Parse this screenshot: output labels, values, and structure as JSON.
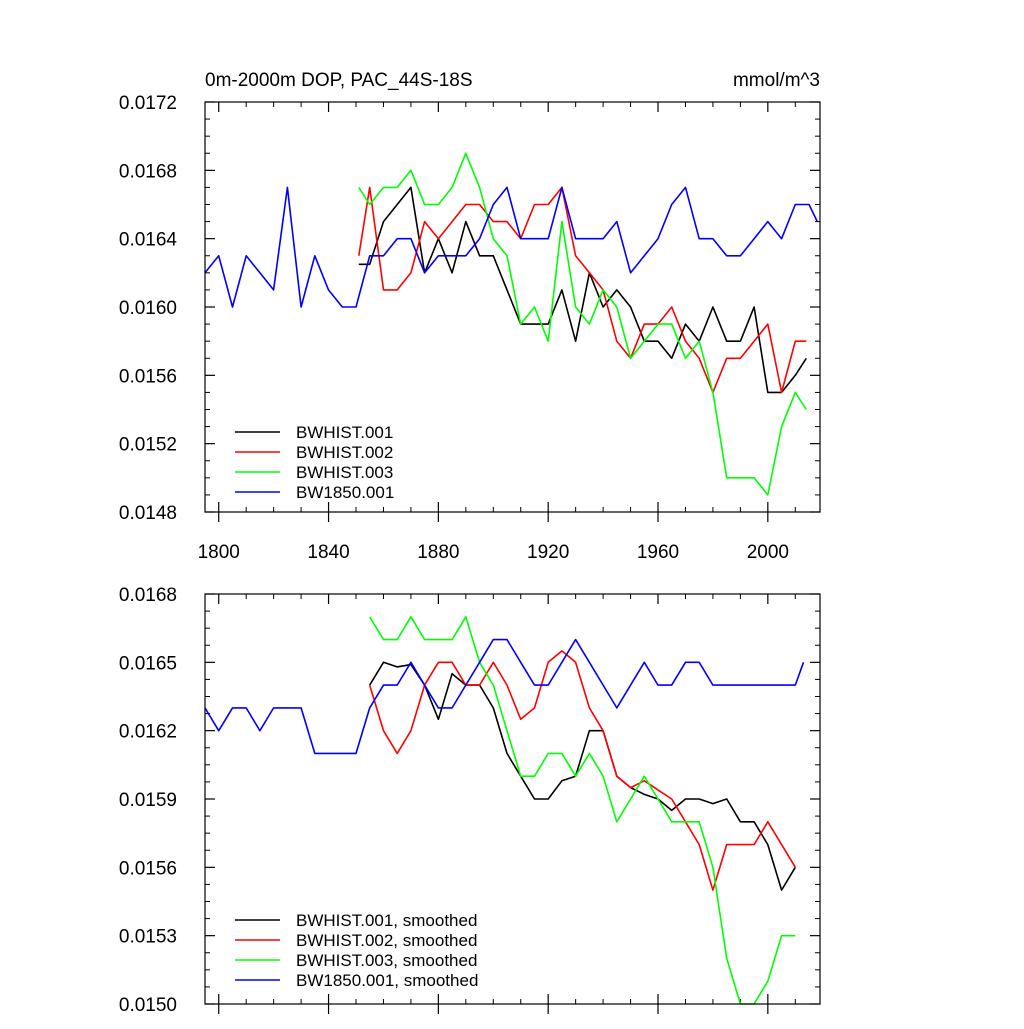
{
  "chart_data": [
    {
      "type": "line",
      "title": "0m-2000m DOP, PAC_44S-18S",
      "units": "mmol/m^3",
      "xlim": [
        1795,
        2019
      ],
      "ylim": [
        0.0148,
        0.0172
      ],
      "xticks": [
        1800,
        1840,
        1880,
        1920,
        1960,
        2000
      ],
      "yticks": [
        0.0148,
        0.0152,
        0.0156,
        0.016,
        0.0164,
        0.0168,
        0.0172
      ],
      "ytick_labels": [
        "0.0148",
        "0.0152",
        "0.0156",
        "0.0160",
        "0.0164",
        "0.0168",
        "0.0172"
      ],
      "xtick_labels": [
        "1800",
        "1840",
        "1880",
        "1920",
        "1960",
        "2000"
      ],
      "legend_position": "bottom-left",
      "series": [
        {
          "name": "BWHIST.001",
          "color": "#000000",
          "x": [
            1851,
            1855,
            1860,
            1865,
            1870,
            1875,
            1880,
            1885,
            1890,
            1895,
            1900,
            1905,
            1910,
            1915,
            1920,
            1925,
            1930,
            1935,
            1940,
            1945,
            1950,
            1955,
            1960,
            1965,
            1970,
            1975,
            1980,
            1985,
            1990,
            1995,
            2000,
            2005,
            2010,
            2014
          ],
          "y": [
            0.01625,
            0.01625,
            0.0165,
            0.0166,
            0.0167,
            0.0162,
            0.0164,
            0.0162,
            0.0165,
            0.0163,
            0.0163,
            0.0161,
            0.0159,
            0.0159,
            0.0159,
            0.0161,
            0.0158,
            0.0162,
            0.016,
            0.0161,
            0.016,
            0.0158,
            0.0158,
            0.0157,
            0.0159,
            0.0158,
            0.016,
            0.0158,
            0.0158,
            0.016,
            0.0155,
            0.0155,
            0.0156,
            0.0157
          ]
        },
        {
          "name": "BWHIST.002",
          "color": "#ff0000",
          "x": [
            1851,
            1855,
            1860,
            1865,
            1870,
            1875,
            1880,
            1885,
            1890,
            1895,
            1900,
            1905,
            1910,
            1915,
            1920,
            1925,
            1930,
            1935,
            1940,
            1945,
            1950,
            1955,
            1960,
            1965,
            1970,
            1975,
            1980,
            1985,
            1990,
            1995,
            2000,
            2005,
            2010,
            2014
          ],
          "y": [
            0.0163,
            0.0167,
            0.0161,
            0.0161,
            0.0162,
            0.0165,
            0.0164,
            0.0165,
            0.0166,
            0.0166,
            0.0165,
            0.0165,
            0.0164,
            0.0166,
            0.0166,
            0.0167,
            0.0163,
            0.0162,
            0.0161,
            0.0158,
            0.0157,
            0.0159,
            0.0159,
            0.016,
            0.0158,
            0.0157,
            0.0155,
            0.0157,
            0.0157,
            0.0158,
            0.0159,
            0.0155,
            0.0158,
            0.0158
          ]
        },
        {
          "name": "BWHIST.003",
          "color": "#00ff00",
          "x": [
            1851,
            1855,
            1860,
            1865,
            1870,
            1875,
            1880,
            1885,
            1890,
            1895,
            1900,
            1905,
            1910,
            1915,
            1920,
            1925,
            1930,
            1935,
            1940,
            1945,
            1950,
            1955,
            1960,
            1965,
            1970,
            1975,
            1980,
            1985,
            1990,
            1995,
            2000,
            2005,
            2010,
            2014
          ],
          "y": [
            0.0167,
            0.0166,
            0.0167,
            0.0167,
            0.0168,
            0.0166,
            0.0166,
            0.0167,
            0.0169,
            0.0167,
            0.0164,
            0.0163,
            0.0159,
            0.016,
            0.0158,
            0.0165,
            0.016,
            0.0159,
            0.0161,
            0.016,
            0.0157,
            0.0158,
            0.0159,
            0.0159,
            0.0157,
            0.0158,
            0.0155,
            0.015,
            0.015,
            0.015,
            0.0149,
            0.0153,
            0.0155,
            0.0154
          ]
        },
        {
          "name": "BW1850.001",
          "color": "#0000ff",
          "x": [
            1795,
            1800,
            1805,
            1810,
            1815,
            1820,
            1825,
            1830,
            1835,
            1840,
            1845,
            1850,
            1855,
            1860,
            1865,
            1870,
            1875,
            1880,
            1885,
            1890,
            1895,
            1900,
            1905,
            1910,
            1915,
            1920,
            1925,
            1930,
            1935,
            1940,
            1945,
            1950,
            1955,
            1960,
            1965,
            1970,
            1975,
            1980,
            1985,
            1990,
            1995,
            2000,
            2005,
            2010,
            2015,
            2018
          ],
          "y": [
            0.0162,
            0.0163,
            0.016,
            0.0163,
            0.0162,
            0.0161,
            0.0167,
            0.016,
            0.0163,
            0.0161,
            0.016,
            0.016,
            0.0163,
            0.0163,
            0.0164,
            0.0164,
            0.0162,
            0.0163,
            0.0163,
            0.0163,
            0.0164,
            0.0166,
            0.0167,
            0.0164,
            0.0164,
            0.0164,
            0.0167,
            0.0164,
            0.0164,
            0.0164,
            0.0165,
            0.0162,
            0.0163,
            0.0164,
            0.0166,
            0.0167,
            0.0164,
            0.0164,
            0.0163,
            0.0163,
            0.0164,
            0.0165,
            0.0164,
            0.0166,
            0.0166,
            0.0165
          ]
        }
      ]
    },
    {
      "type": "line",
      "title": "",
      "xlim": [
        1795,
        2019
      ],
      "ylim": [
        0.015,
        0.0168
      ],
      "xticks": [
        1800,
        1840,
        1880,
        1920,
        1960,
        2000
      ],
      "yticks": [
        0.015,
        0.0153,
        0.0156,
        0.0159,
        0.0162,
        0.0165,
        0.0168
      ],
      "ytick_labels": [
        "0.0150",
        "0.0153",
        "0.0156",
        "0.0159",
        "0.0162",
        "0.0165",
        "0.0168"
      ],
      "legend_position": "bottom-left",
      "series": [
        {
          "name": "BWHIST.001, smoothed",
          "color": "#000000",
          "x": [
            1855,
            1860,
            1865,
            1870,
            1875,
            1880,
            1885,
            1890,
            1895,
            1900,
            1905,
            1910,
            1915,
            1920,
            1925,
            1930,
            1935,
            1940,
            1945,
            1950,
            1955,
            1960,
            1965,
            1970,
            1975,
            1980,
            1985,
            1990,
            1995,
            2000,
            2005,
            2010
          ],
          "y": [
            0.0164,
            0.0165,
            0.01648,
            0.01649,
            0.0164,
            0.01625,
            0.01645,
            0.0164,
            0.0164,
            0.0163,
            0.0161,
            0.016,
            0.0159,
            0.0159,
            0.01598,
            0.016,
            0.0162,
            0.0162,
            0.016,
            0.01595,
            0.01592,
            0.0159,
            0.01585,
            0.0159,
            0.0159,
            0.01588,
            0.0159,
            0.0158,
            0.0158,
            0.0157,
            0.0155,
            0.0156
          ]
        },
        {
          "name": "BWHIST.002, smoothed",
          "color": "#ff0000",
          "x": [
            1855,
            1860,
            1865,
            1870,
            1875,
            1880,
            1885,
            1890,
            1895,
            1900,
            1905,
            1910,
            1915,
            1920,
            1925,
            1930,
            1935,
            1940,
            1945,
            1950,
            1955,
            1960,
            1965,
            1970,
            1975,
            1980,
            1985,
            1990,
            1995,
            2000,
            2005,
            2010
          ],
          "y": [
            0.0164,
            0.0162,
            0.0161,
            0.0162,
            0.0164,
            0.0165,
            0.0165,
            0.0164,
            0.0164,
            0.0165,
            0.0164,
            0.01625,
            0.0163,
            0.0165,
            0.01655,
            0.0165,
            0.0163,
            0.0162,
            0.016,
            0.01595,
            0.01598,
            0.01594,
            0.0159,
            0.0158,
            0.0157,
            0.0155,
            0.0157,
            0.0157,
            0.0157,
            0.0158,
            0.0157,
            0.0156
          ]
        },
        {
          "name": "BWHIST.003, smoothed",
          "color": "#00ff00",
          "x": [
            1855,
            1860,
            1865,
            1870,
            1875,
            1880,
            1885,
            1890,
            1895,
            1900,
            1905,
            1910,
            1915,
            1920,
            1925,
            1930,
            1935,
            1940,
            1945,
            1950,
            1955,
            1960,
            1965,
            1970,
            1975,
            1980,
            1985,
            1990,
            1995,
            2000,
            2005,
            2010
          ],
          "y": [
            0.0167,
            0.0166,
            0.0166,
            0.0167,
            0.0166,
            0.0166,
            0.0166,
            0.0167,
            0.0165,
            0.0164,
            0.0162,
            0.016,
            0.016,
            0.0161,
            0.0161,
            0.016,
            0.0161,
            0.016,
            0.0158,
            0.0159,
            0.016,
            0.0159,
            0.0158,
            0.0158,
            0.0158,
            0.0156,
            0.0152,
            0.015,
            0.015,
            0.0151,
            0.0153,
            0.0153
          ]
        },
        {
          "name": "BW1850.001, smoothed",
          "color": "#0000ff",
          "x": [
            1795,
            1800,
            1805,
            1810,
            1815,
            1820,
            1825,
            1830,
            1835,
            1840,
            1845,
            1850,
            1855,
            1860,
            1865,
            1870,
            1875,
            1880,
            1885,
            1890,
            1895,
            1900,
            1905,
            1910,
            1915,
            1920,
            1925,
            1930,
            1935,
            1940,
            1945,
            1950,
            1955,
            1960,
            1965,
            1970,
            1975,
            1980,
            1985,
            1990,
            1995,
            2000,
            2005,
            2010,
            2013
          ],
          "y": [
            0.0163,
            0.0162,
            0.0163,
            0.0163,
            0.0162,
            0.0163,
            0.0163,
            0.0163,
            0.0161,
            0.0161,
            0.0161,
            0.0161,
            0.0163,
            0.0164,
            0.0164,
            0.0165,
            0.0164,
            0.0163,
            0.0163,
            0.0164,
            0.0165,
            0.0166,
            0.0166,
            0.0165,
            0.0164,
            0.0164,
            0.0165,
            0.0166,
            0.0165,
            0.0164,
            0.0163,
            0.0164,
            0.0165,
            0.0164,
            0.0164,
            0.0165,
            0.0165,
            0.0164,
            0.0164,
            0.0164,
            0.0164,
            0.0164,
            0.0164,
            0.0164,
            0.0165
          ]
        }
      ]
    }
  ]
}
